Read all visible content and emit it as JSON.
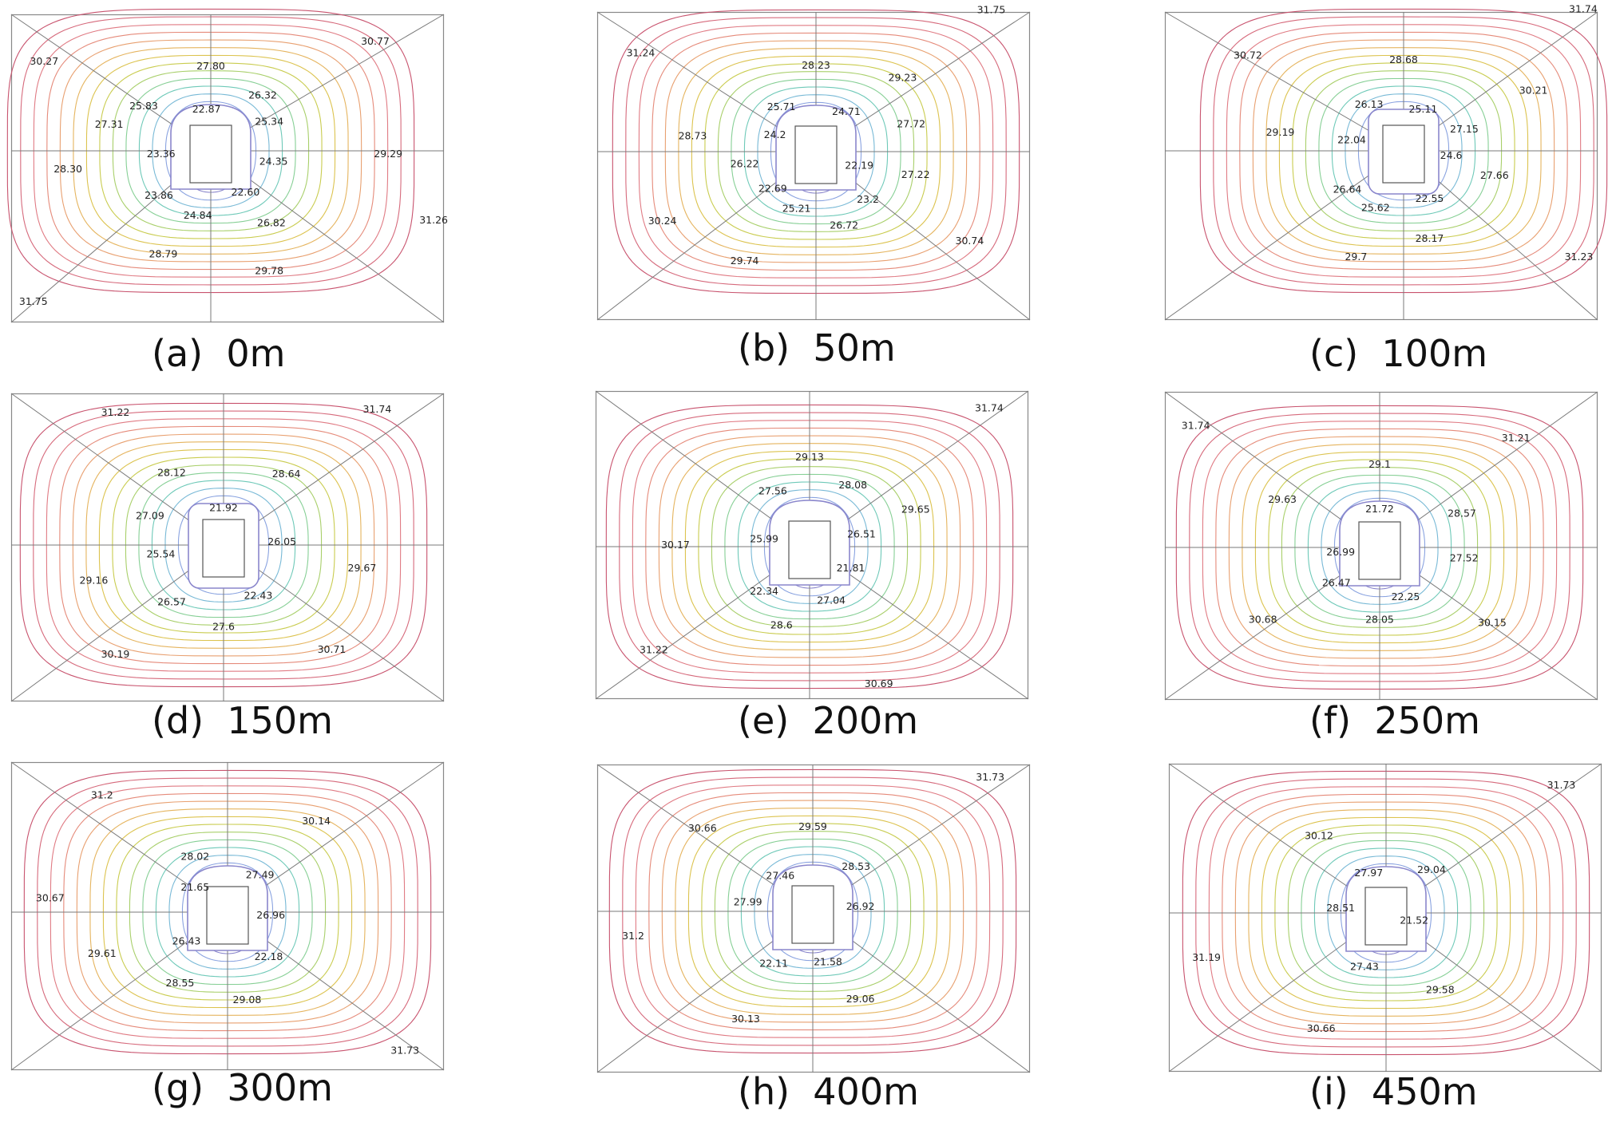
{
  "figure": {
    "contour_colors": [
      "#c8536e",
      "#d66a7c",
      "#e07b84",
      "#e58a7a",
      "#e8a070",
      "#e5b45e",
      "#dcc34f",
      "#c9cc4f",
      "#a8cf6a",
      "#86cf95",
      "#6ec9b8",
      "#78b9d6",
      "#8aa3e0",
      "#8a86cc"
    ],
    "panels": [
      {
        "id": "a",
        "caption_id": "(a)",
        "caption_depth": "0m",
        "tunnel": "horseshoe",
        "labels": [
          [
            "30.27",
            -0.77,
            -0.58
          ],
          [
            "27.80",
            0.0,
            -0.55
          ],
          [
            "30.77",
            0.76,
            -0.71
          ],
          [
            "26.32",
            0.24,
            -0.36
          ],
          [
            "25.83",
            -0.31,
            -0.29
          ],
          [
            "22.87",
            -0.02,
            -0.27
          ],
          [
            "25.34",
            0.27,
            -0.19
          ],
          [
            "27.31",
            -0.47,
            -0.17
          ],
          [
            "23.36",
            -0.23,
            0.02
          ],
          [
            "24.35",
            0.29,
            0.07
          ],
          [
            "29.29",
            0.82,
            0.02
          ],
          [
            "28.30",
            -0.66,
            0.12
          ],
          [
            "23.86",
            -0.24,
            0.29
          ],
          [
            "22.60",
            0.16,
            0.27
          ],
          [
            "31.26",
            1.03,
            0.45
          ],
          [
            "24.84",
            -0.06,
            0.42
          ],
          [
            "26.82",
            0.28,
            0.47
          ],
          [
            "28.79",
            -0.22,
            0.67
          ],
          [
            "29.78",
            0.27,
            0.78
          ],
          [
            "31.75",
            -0.82,
            0.98
          ]
        ]
      },
      {
        "id": "b",
        "caption_id": "(b)",
        "caption_depth": "50m",
        "tunnel": "horseshoe",
        "labels": [
          [
            "31.75",
            0.81,
            -0.92
          ],
          [
            "31.24",
            -0.81,
            -0.64
          ],
          [
            "28.23",
            0.0,
            -0.56
          ],
          [
            "29.23",
            0.4,
            -0.48
          ],
          [
            "25.71",
            -0.16,
            -0.29
          ],
          [
            "24.71",
            0.14,
            -0.26
          ],
          [
            "27.72",
            0.44,
            -0.18
          ],
          [
            "28.73",
            -0.57,
            -0.1
          ],
          [
            "24.2",
            -0.19,
            -0.11
          ],
          [
            "26.22",
            -0.33,
            0.08
          ],
          [
            "22.19",
            0.2,
            0.09
          ],
          [
            "27.22",
            0.46,
            0.15
          ],
          [
            "22.69",
            -0.2,
            0.24
          ],
          [
            "23.2",
            0.24,
            0.31
          ],
          [
            "25.21",
            -0.09,
            0.37
          ],
          [
            "30.24",
            -0.71,
            0.45
          ],
          [
            "26.72",
            0.13,
            0.48
          ],
          [
            "30.74",
            0.71,
            0.58
          ],
          [
            "29.74",
            -0.33,
            0.71
          ]
        ]
      },
      {
        "id": "c",
        "caption_id": "(c)",
        "caption_depth": "100m",
        "tunnel": "box",
        "labels": [
          [
            "31.74",
            0.83,
            -0.92
          ],
          [
            "30.72",
            -0.72,
            -0.62
          ],
          [
            "28.68",
            0.0,
            -0.59
          ],
          [
            "30.21",
            0.6,
            -0.39
          ],
          [
            "26.13",
            -0.16,
            -0.3
          ],
          [
            "25.11",
            0.09,
            -0.27
          ],
          [
            "27.15",
            0.28,
            -0.14
          ],
          [
            "29.19",
            -0.57,
            -0.12
          ],
          [
            "22.04",
            -0.24,
            -0.07
          ],
          [
            "24.6",
            0.22,
            0.03
          ],
          [
            "27.66",
            0.42,
            0.16
          ],
          [
            "26.64",
            -0.26,
            0.25
          ],
          [
            "22.55",
            0.12,
            0.31
          ],
          [
            "25.62",
            -0.13,
            0.37
          ],
          [
            "28.17",
            0.12,
            0.57
          ],
          [
            "29.7",
            -0.22,
            0.69
          ],
          [
            "31.23",
            0.81,
            0.69
          ]
        ]
      },
      {
        "id": "d",
        "caption_id": "(d)",
        "caption_depth": "150m",
        "tunnel": "box",
        "labels": [
          [
            "31.22",
            -0.5,
            -0.86
          ],
          [
            "31.74",
            0.71,
            -0.88
          ],
          [
            "28.12",
            -0.24,
            -0.47
          ],
          [
            "28.64",
            0.29,
            -0.46
          ],
          [
            "21.92",
            0.0,
            -0.24
          ],
          [
            "27.09",
            -0.34,
            -0.19
          ],
          [
            "26.05",
            0.27,
            -0.02
          ],
          [
            "25.54",
            -0.29,
            0.06
          ],
          [
            "29.67",
            0.64,
            0.15
          ],
          [
            "29.16",
            -0.6,
            0.23
          ],
          [
            "26.57",
            -0.24,
            0.37
          ],
          [
            "22.43",
            0.16,
            0.33
          ],
          [
            "27.6",
            0.0,
            0.53
          ],
          [
            "30.19",
            -0.5,
            0.71
          ],
          [
            "30.71",
            0.5,
            0.68
          ]
        ]
      },
      {
        "id": "e",
        "caption_id": "(e)",
        "caption_depth": "200m",
        "tunnel": "horseshoe",
        "labels": [
          [
            "31.74",
            0.83,
            -0.9
          ],
          [
            "29.13",
            0.0,
            -0.58
          ],
          [
            "28.08",
            0.2,
            -0.4
          ],
          [
            "27.56",
            -0.17,
            -0.36
          ],
          [
            "29.65",
            0.49,
            -0.24
          ],
          [
            "26.51",
            0.24,
            -0.08
          ],
          [
            "25.99",
            -0.21,
            -0.05
          ],
          [
            "30.17",
            -0.62,
            -0.01
          ],
          [
            "21.81",
            0.19,
            0.14
          ],
          [
            "22.34",
            -0.21,
            0.29
          ],
          [
            "27.04",
            0.1,
            0.35
          ],
          [
            "28.6",
            -0.13,
            0.51
          ],
          [
            "31.22",
            -0.72,
            0.67
          ],
          [
            "30.69",
            0.32,
            0.89
          ]
        ]
      },
      {
        "id": "f",
        "caption_id": "(f)",
        "caption_depth": "250m",
        "tunnel": "horseshoe",
        "labels": [
          [
            "31.74",
            -0.85,
            -0.79
          ],
          [
            "31.21",
            0.63,
            -0.71
          ],
          [
            "29.1",
            0.0,
            -0.54
          ],
          [
            "29.63",
            -0.45,
            -0.31
          ],
          [
            "28.57",
            0.38,
            -0.22
          ],
          [
            "21.72",
            0.0,
            -0.25
          ],
          [
            "27.52",
            0.39,
            0.07
          ],
          [
            "26.99",
            -0.18,
            0.03
          ],
          [
            "26.47",
            -0.2,
            0.23
          ],
          [
            "22.25",
            0.12,
            0.32
          ],
          [
            "28.05",
            0.0,
            0.47
          ],
          [
            "30.68",
            -0.54,
            0.47
          ],
          [
            "30.15",
            0.52,
            0.49
          ]
        ]
      },
      {
        "id": "g",
        "caption_id": "(g)",
        "caption_depth": "300m",
        "tunnel": "horseshoe",
        "labels": [
          [
            "31.2",
            -0.58,
            -0.76
          ],
          [
            "30.14",
            0.41,
            -0.59
          ],
          [
            "28.02",
            -0.15,
            -0.36
          ],
          [
            "27.49",
            0.15,
            -0.24
          ],
          [
            "21.65",
            -0.15,
            -0.16
          ],
          [
            "26.96",
            0.2,
            0.02
          ],
          [
            "30.67",
            -0.82,
            -0.09
          ],
          [
            "26.43",
            -0.19,
            0.19
          ],
          [
            "29.61",
            -0.58,
            0.27
          ],
          [
            "22.18",
            0.19,
            0.29
          ],
          [
            "28.55",
            -0.22,
            0.46
          ],
          [
            "29.08",
            0.09,
            0.57
          ],
          [
            "31.73",
            0.82,
            0.9
          ]
        ]
      },
      {
        "id": "h",
        "caption_id": "(h)",
        "caption_depth": "400m",
        "tunnel": "horseshoe",
        "labels": [
          [
            "31.73",
            0.82,
            -0.87
          ],
          [
            "30.66",
            -0.51,
            -0.54
          ],
          [
            "29.59",
            0.0,
            -0.55
          ],
          [
            "28.53",
            0.2,
            -0.29
          ],
          [
            "27.46",
            -0.15,
            -0.23
          ],
          [
            "27.99",
            -0.3,
            -0.06
          ],
          [
            "26.92",
            0.22,
            -0.03
          ],
          [
            "31.2",
            -0.83,
            0.16
          ],
          [
            "22.11",
            -0.18,
            0.34
          ],
          [
            "21.58",
            0.07,
            0.33
          ],
          [
            "29.06",
            0.22,
            0.57
          ],
          [
            "30.13",
            -0.31,
            0.7
          ]
        ]
      },
      {
        "id": "i",
        "caption_id": "(i)",
        "caption_depth": "450m",
        "tunnel": "horseshoe",
        "labels": [
          [
            "31.73",
            0.81,
            -0.83
          ],
          [
            "30.12",
            -0.31,
            -0.5
          ],
          [
            "27.97",
            -0.08,
            -0.26
          ],
          [
            "29.04",
            0.21,
            -0.28
          ],
          [
            "28.51",
            -0.21,
            -0.03
          ],
          [
            "21.52",
            0.13,
            0.05
          ],
          [
            "31.19",
            -0.83,
            0.29
          ],
          [
            "27.43",
            -0.1,
            0.35
          ],
          [
            "29.58",
            0.25,
            0.5
          ],
          [
            "30.66",
            -0.3,
            0.75
          ]
        ]
      }
    ]
  }
}
